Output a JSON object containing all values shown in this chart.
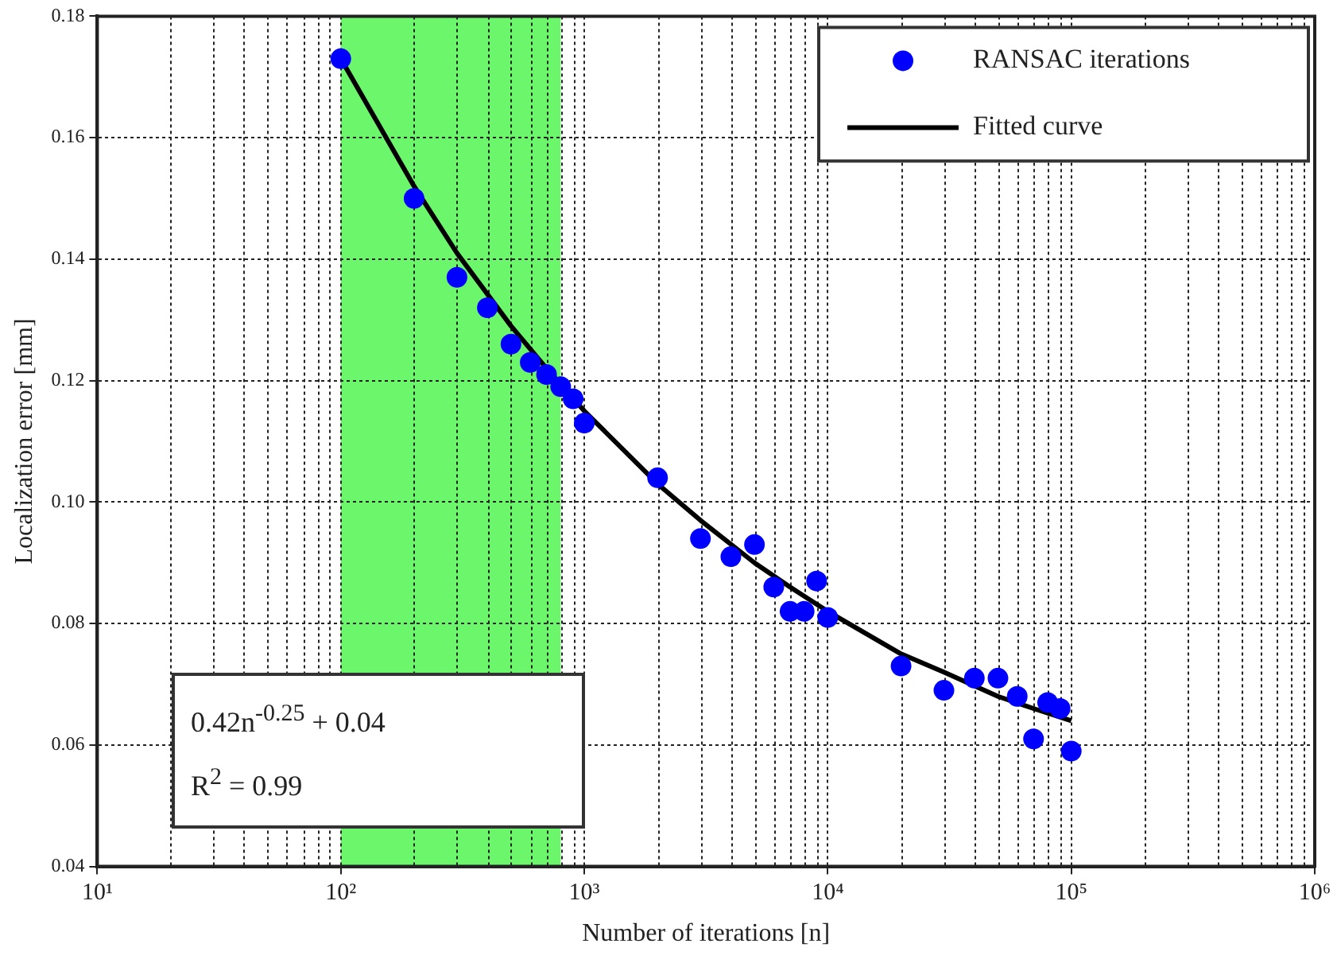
{
  "chart_data": {
    "type": "scatter",
    "xlabel": "Number of iterations [n]",
    "ylabel": "Localization error [mm]",
    "log": "x",
    "grid": true,
    "legend": "top right",
    "marker": "circle",
    "xlim": [
      10,
      1000000
    ],
    "xticks": [
      {
        "value": 10,
        "label": "10¹"
      },
      {
        "value": 100,
        "label": "10²"
      },
      {
        "value": 1000,
        "label": "10³"
      },
      {
        "value": 10000,
        "label": "10⁴"
      },
      {
        "value": 100000,
        "label": "10⁵"
      },
      {
        "value": 1000000,
        "label": "10⁶"
      }
    ],
    "ylim": [
      0.04,
      0.18
    ],
    "yticks": [
      0.04,
      0.06,
      0.08,
      {
        "value": 0.1,
        "label": "0.10"
      },
      0.12,
      0.14,
      0.16,
      0.18
    ],
    "bands": [
      {
        "axis": "x",
        "from": 100,
        "to": 800,
        "color": "#6cf66c"
      }
    ],
    "annotations": [
      "0.42n$^{-0.25}$ + 0.04",
      "R$^{2}$ = 0.99"
    ],
    "series": [
      {
        "name": "RANSAC iterations",
        "color": "#0000ff",
        "x": [
          100,
          200,
          300,
          400,
          500,
          600,
          700,
          800,
          900,
          1000,
          2000,
          3000,
          4000,
          5000,
          6000,
          7000,
          8000,
          9000,
          10000,
          20000,
          30000,
          40000,
          50000,
          60000,
          70000,
          80000,
          90000,
          100000
        ],
        "values": [
          0.173,
          0.15,
          0.137,
          0.132,
          0.126,
          0.123,
          0.121,
          0.119,
          0.117,
          0.113,
          0.104,
          0.094,
          0.091,
          0.093,
          0.086,
          0.082,
          0.082,
          0.087,
          0.081,
          0.073,
          0.069,
          0.071,
          0.071,
          0.068,
          0.061,
          0.067,
          0.066,
          0.059
        ]
      },
      {
        "name": "Fitted curve",
        "type": "line",
        "color": "#000000",
        "marker": "none",
        "x": [
          100,
          200,
          300,
          500,
          700,
          1000,
          2000,
          3000,
          5000,
          7000,
          10000,
          20000,
          30000,
          50000,
          70000,
          100000
        ],
        "values": [
          0.173,
          0.152,
          0.141,
          0.129,
          0.122,
          0.115,
          0.103,
          0.097,
          0.09,
          0.086,
          0.082,
          0.075,
          0.072,
          0.068,
          0.066,
          0.064
        ]
      }
    ]
  }
}
